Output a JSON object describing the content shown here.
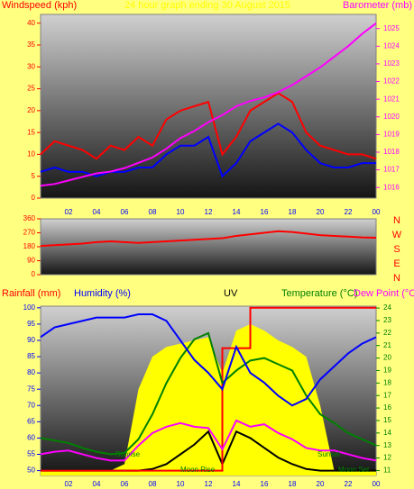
{
  "chart_data": [
    {
      "type": "line",
      "title": "24 hour graph ending 30 August 2015",
      "categories": [
        null,
        null,
        "02",
        null,
        "04",
        null,
        "06",
        null,
        "08",
        null,
        "10",
        null,
        "12",
        null,
        "14",
        null,
        "16",
        null,
        "18",
        null,
        "20",
        null,
        "22",
        null,
        "00"
      ],
      "series": [
        {
          "name": "Windspeed (kph)",
          "color": "#ff0000",
          "values": [
            10,
            13,
            12,
            11,
            9,
            12,
            11,
            14,
            12,
            18,
            20,
            21,
            22,
            10,
            14,
            20,
            22,
            24,
            22,
            15,
            12,
            11,
            10,
            10,
            9
          ]
        },
        {
          "color": "#0000ff",
          "values": [
            6,
            7,
            6,
            6,
            5,
            6,
            6,
            7,
            7,
            10,
            12,
            12,
            14,
            5,
            8,
            13,
            15,
            17,
            15,
            11,
            8,
            7,
            7,
            8,
            8
          ]
        },
        {
          "name": "Barometer (mb)",
          "color": "#ff00ff",
          "axis": "y2",
          "values": [
            1016.1,
            1016.2,
            1016.4,
            1016.6,
            1016.8,
            1016.9,
            1017.1,
            1017.4,
            1017.7,
            1018.2,
            1018.8,
            1019.2,
            1019.7,
            1020.1,
            1020.6,
            1020.9,
            1021.1,
            1021.4,
            1021.8,
            1022.3,
            1022.8,
            1023.4,
            1024,
            1024.7,
            1025.3
          ]
        }
      ],
      "ylim": [
        0,
        42
      ],
      "yticks": [
        0,
        5,
        10,
        15,
        20,
        25,
        30,
        35,
        40
      ],
      "y2lim": [
        1015.4,
        1025.8
      ],
      "y2ticks": [
        1016,
        1017,
        1018,
        1019,
        1020,
        1021,
        1022,
        1023,
        1024,
        1025
      ]
    },
    {
      "type": "line",
      "categories": [
        null,
        null,
        "02",
        null,
        "04",
        null,
        "06",
        null,
        "08",
        null,
        "10",
        null,
        "12",
        null,
        "14",
        null,
        "16",
        null,
        "18",
        null,
        "20",
        null,
        "22",
        null,
        "00"
      ],
      "series": [
        {
          "color": "#ff0000",
          "values": [
            185,
            190,
            195,
            200,
            210,
            215,
            210,
            205,
            210,
            215,
            220,
            225,
            230,
            235,
            250,
            260,
            270,
            280,
            275,
            265,
            255,
            250,
            245,
            240,
            238
          ]
        }
      ],
      "ylim": [
        0,
        360
      ],
      "yticks": [
        0,
        90,
        180,
        270,
        360
      ],
      "direction_labels": [
        "N",
        "W",
        "S",
        "E",
        "N"
      ]
    },
    {
      "type": "line",
      "categories": [
        null,
        null,
        "02",
        null,
        "04",
        null,
        "06",
        null,
        "08",
        null,
        "10",
        null,
        "12",
        null,
        "14",
        null,
        "16",
        null,
        "18",
        null,
        "20",
        null,
        "22",
        null,
        "00"
      ],
      "series": [
        {
          "color": "#ffff00",
          "style": "area",
          "values": [
            50,
            50,
            50,
            50,
            50,
            50,
            52,
            75,
            85,
            88,
            89,
            90,
            91,
            80,
            93,
            95,
            93,
            90,
            88,
            85,
            70,
            50,
            50,
            50,
            50
          ]
        },
        {
          "name": "UV",
          "color": "#000000",
          "values": [
            50,
            50,
            50,
            50,
            50,
            50,
            50,
            50,
            50.5,
            52,
            55,
            58,
            62,
            52,
            62,
            60,
            57,
            54,
            52,
            50.5,
            50,
            50,
            50,
            50,
            50
          ]
        },
        {
          "name": "Rainfall (mm)",
          "color": "#ff0000",
          "style": "step",
          "values": [
            50,
            50,
            50,
            50,
            50,
            50,
            50,
            50,
            50,
            50,
            50,
            50,
            50,
            87.6,
            87.6,
            100,
            100,
            100,
            100,
            100,
            100,
            100,
            100,
            100,
            100
          ]
        },
        {
          "name": "Temperature (°C)",
          "color": "#008000",
          "axis": "y2",
          "values": [
            13.6,
            13.4,
            13.2,
            12.8,
            12.5,
            12.3,
            12.4,
            13.5,
            15.5,
            18,
            20,
            21.5,
            22,
            18,
            19,
            19.8,
            20,
            19.5,
            19,
            17,
            15.5,
            14.8,
            14,
            13.5,
            13
          ]
        },
        {
          "name": "Dew Point (°C)",
          "color": "#ff00ff",
          "axis": "y2",
          "values": [
            12.3,
            12.5,
            12.6,
            12.3,
            12,
            11.8,
            11.8,
            13,
            14,
            14.5,
            14.8,
            14.5,
            14.4,
            12.7,
            15,
            14.5,
            14.7,
            14,
            13.5,
            12.8,
            12.6,
            12.6,
            12.3,
            12,
            11.8
          ]
        },
        {
          "name": "Humidity (%)",
          "color": "#0000ff",
          "values": [
            91,
            94,
            95,
            96,
            97,
            97,
            97,
            98,
            98,
            96,
            90,
            84,
            80,
            75,
            88,
            80,
            77,
            73,
            70,
            72,
            78,
            82,
            86,
            89,
            91
          ]
        }
      ],
      "ylim": [
        48.5,
        100.5
      ],
      "yticks": [
        50,
        55,
        60,
        65,
        70,
        75,
        80,
        85,
        90,
        95,
        100
      ],
      "y2lim": [
        10.6,
        24.15
      ],
      "y2ticks": [
        11,
        12,
        13,
        14,
        15,
        16,
        17,
        18,
        19,
        20,
        21,
        22,
        23,
        24
      ],
      "annotations": [
        "Sunrise",
        "Sunset",
        "Moon Rise",
        "Moon Set"
      ]
    }
  ]
}
